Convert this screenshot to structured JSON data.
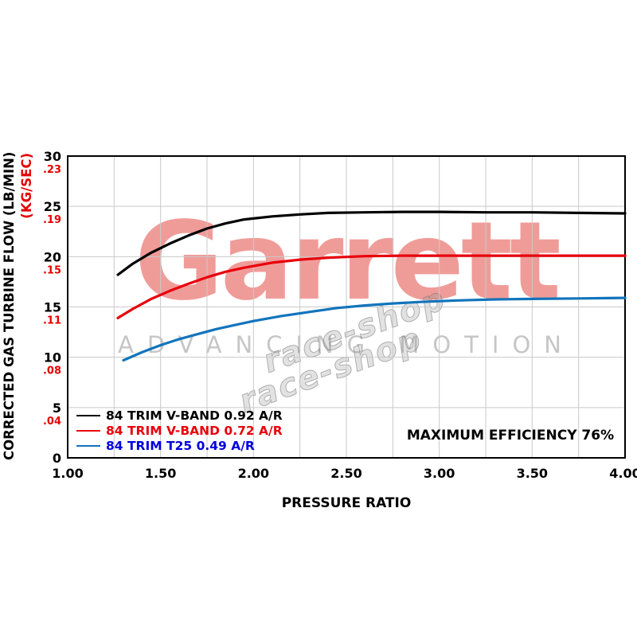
{
  "watermark": {
    "brand": "Garrett",
    "tagline": "ADVANCING MOTION",
    "diagonal_1": "race-shop",
    "diagonal_2": "race-shop"
  },
  "chart_data": {
    "type": "line",
    "title": "",
    "xlabel": "PRESSURE RATIO",
    "ylabel_lb": "CORRECTED GAS TURBINE FLOW (LB/MIN)",
    "ylabel_kg": "(KG/SEC)",
    "xlim": [
      1.0,
      4.0
    ],
    "ylim": [
      0,
      30
    ],
    "grid": true,
    "x_minor_grid_step": 0.25,
    "x_tick_values": [
      1.0,
      1.5,
      2.0,
      2.5,
      3.0,
      3.5,
      4.0
    ],
    "x_tick_labels": [
      "1.00",
      "1.50",
      "2.00",
      "2.50",
      "3.00",
      "3.50",
      "4.00"
    ],
    "y_tick_values": [
      0,
      5,
      10,
      15,
      20,
      25,
      30
    ],
    "y_tick_labels_lb": [
      "0",
      "5",
      "10",
      "15",
      "20",
      "25",
      "30"
    ],
    "y_tick_labels_kg": [
      "",
      ".04",
      ".08",
      ".11",
      ".15",
      ".19",
      ".23"
    ],
    "annotation": "MAXIMUM EFFICIENCY 76%",
    "legend_position": "bottom-left-inside",
    "series": [
      {
        "name": "84 TRIM V-BAND 0.92 A/R",
        "color": "#000000",
        "label_color": "#000000",
        "points": [
          [
            1.27,
            18.2
          ],
          [
            1.35,
            19.3
          ],
          [
            1.45,
            20.4
          ],
          [
            1.55,
            21.3
          ],
          [
            1.65,
            22.1
          ],
          [
            1.75,
            22.8
          ],
          [
            1.85,
            23.3
          ],
          [
            1.95,
            23.7
          ],
          [
            2.1,
            24.0
          ],
          [
            2.25,
            24.2
          ],
          [
            2.4,
            24.35
          ],
          [
            2.6,
            24.4
          ],
          [
            2.8,
            24.45
          ],
          [
            3.0,
            24.45
          ],
          [
            3.25,
            24.4
          ],
          [
            3.5,
            24.4
          ],
          [
            3.75,
            24.35
          ],
          [
            4.0,
            24.3
          ]
        ]
      },
      {
        "name": "84 TRIM V-BAND 0.72 A/R",
        "color": "#e8000b",
        "label_color": "#e8000b",
        "points": [
          [
            1.27,
            13.9
          ],
          [
            1.35,
            14.8
          ],
          [
            1.45,
            15.8
          ],
          [
            1.55,
            16.6
          ],
          [
            1.65,
            17.3
          ],
          [
            1.75,
            17.95
          ],
          [
            1.85,
            18.5
          ],
          [
            1.95,
            18.9
          ],
          [
            2.1,
            19.4
          ],
          [
            2.25,
            19.7
          ],
          [
            2.4,
            19.9
          ],
          [
            2.6,
            20.05
          ],
          [
            2.8,
            20.1
          ],
          [
            3.0,
            20.1
          ],
          [
            3.5,
            20.1
          ],
          [
            4.0,
            20.1
          ]
        ]
      },
      {
        "name": "84 TRIM T25 0.49 A/R",
        "color": "#1274bc",
        "label_color": "#0000dd",
        "points": [
          [
            1.3,
            9.7
          ],
          [
            1.4,
            10.5
          ],
          [
            1.5,
            11.2
          ],
          [
            1.6,
            11.8
          ],
          [
            1.7,
            12.3
          ],
          [
            1.8,
            12.8
          ],
          [
            1.9,
            13.2
          ],
          [
            2.0,
            13.6
          ],
          [
            2.15,
            14.1
          ],
          [
            2.3,
            14.5
          ],
          [
            2.45,
            14.9
          ],
          [
            2.6,
            15.15
          ],
          [
            2.75,
            15.35
          ],
          [
            2.9,
            15.5
          ],
          [
            3.1,
            15.65
          ],
          [
            3.3,
            15.75
          ],
          [
            3.5,
            15.8
          ],
          [
            3.75,
            15.85
          ],
          [
            4.0,
            15.9
          ]
        ]
      }
    ]
  },
  "colors": {
    "grid": "#c9c9c9",
    "axis": "#000000",
    "y_tick_lb": "#000000",
    "y_tick_kg": "#e60000"
  }
}
